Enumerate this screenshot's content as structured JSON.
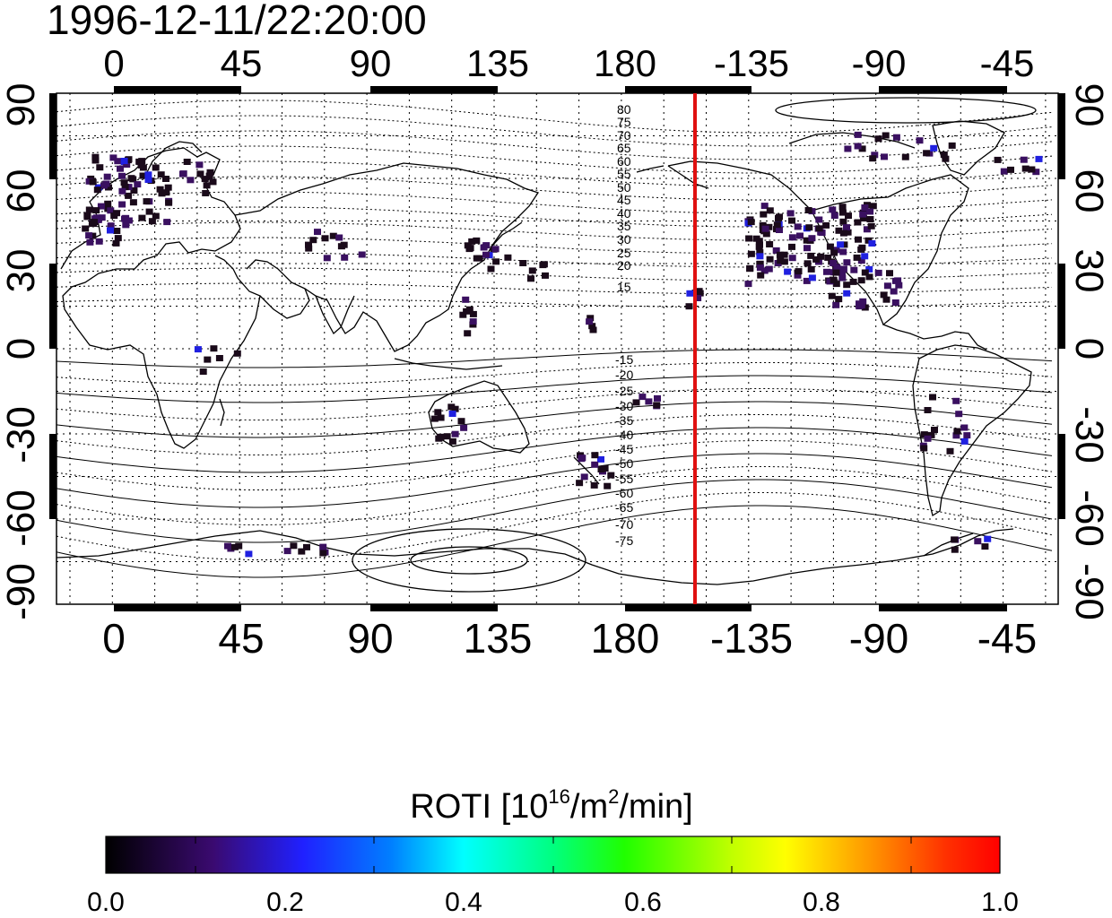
{
  "timestamp": "1996-12-11/22:20:00",
  "top_lon_ticks": [
    "0",
    "45",
    "90",
    "135",
    "180",
    "-135",
    "-90",
    "-45"
  ],
  "bottom_lon_ticks": [
    "0",
    "45",
    "90",
    "135",
    "180",
    "-135",
    "-90",
    "-45"
  ],
  "left_lat_ticks": [
    "90",
    "60",
    "30",
    "0",
    "-30",
    "-60",
    "-90"
  ],
  "right_lat_ticks": [
    "90",
    "60",
    "30",
    "0",
    "-30",
    "-60",
    "-90"
  ],
  "contour_labels_north": [
    "80",
    "75",
    "70",
    "65",
    "60",
    "55",
    "50",
    "45",
    "40",
    "35",
    "30",
    "25",
    "20",
    "15"
  ],
  "contour_labels_south": [
    "-15",
    "-20",
    "-25",
    "-30",
    "-35",
    "-40",
    "-45",
    "-50",
    "-55",
    "-60",
    "-65",
    "-70",
    "-75"
  ],
  "colorbar": {
    "title_prefix": "ROTI  [10",
    "title_sup1": "16",
    "title_mid": "/m",
    "title_sup2": "2",
    "title_suffix": "/min]",
    "tick_labels": [
      "0.0",
      "0.2",
      "0.4",
      "0.6",
      "0.8",
      "1.0"
    ],
    "range": [
      0.0,
      1.0
    ]
  },
  "colors": {
    "terminator": "#e01010",
    "data_dark": "#1a0a1a",
    "data_purple": "#3a1060",
    "data_blue": "#2020e0"
  },
  "map": {
    "projection": "equirectangular",
    "lon_range": [
      -20,
      340
    ],
    "lat_range": [
      -90,
      90
    ],
    "grid": "dotted every 15 degrees",
    "terminator_longitude": -160
  }
}
